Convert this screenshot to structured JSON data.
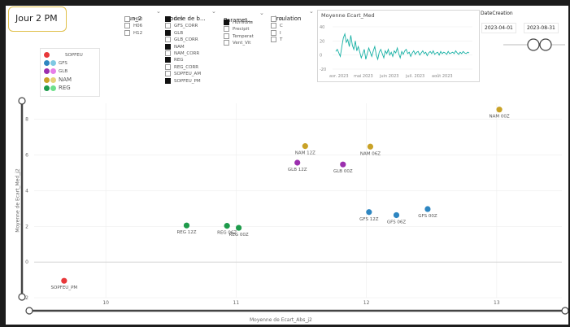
{
  "page_title": "Jour 2 PM",
  "slicers": {
    "run": {
      "title": "Run_2",
      "options": [
        {
          "label": "H00",
          "checked": false
        },
        {
          "label": "H06",
          "checked": false
        },
        {
          "label": "H12",
          "checked": false
        }
      ]
    },
    "modele": {
      "title": "Modele de b...",
      "options": [
        {
          "label": "GFS",
          "checked": true
        },
        {
          "label": "GFS_CORR",
          "checked": false
        },
        {
          "label": "GLB",
          "checked": true
        },
        {
          "label": "GLB_CORR",
          "checked": false
        },
        {
          "label": "NAM",
          "checked": true
        },
        {
          "label": "NAM_CORR",
          "checked": false
        },
        {
          "label": "REG",
          "checked": true
        },
        {
          "label": "REG_CORR",
          "checked": false
        },
        {
          "label": "SOPFEU_AM",
          "checked": false
        },
        {
          "label": "SOPFEU_PM",
          "checked": true
        }
      ]
    },
    "parametre": {
      "title": "Paramet...",
      "options": [
        {
          "label": "Humidite",
          "checked": true
        },
        {
          "label": "Precipit",
          "checked": false
        },
        {
          "label": "Temperat",
          "checked": false
        },
        {
          "label": "Vent_Vit",
          "checked": false
        }
      ]
    },
    "circulation": {
      "title": "Circulation",
      "options": [
        {
          "label": "A",
          "checked": false
        },
        {
          "label": "C",
          "checked": false
        },
        {
          "label": "I",
          "checked": false
        },
        {
          "label": "T",
          "checked": false
        }
      ]
    }
  },
  "legend": {
    "items": [
      {
        "label": "SOPFEU",
        "colors": [
          "#e8383a"
        ]
      },
      {
        "label": "GFS",
        "colors": [
          "#2e86c1",
          "#7ec8e3"
        ]
      },
      {
        "label": "GLB",
        "colors": [
          "#9b2fae",
          "#e77ee8"
        ]
      },
      {
        "label": "NAM",
        "colors": [
          "#c9a227",
          "#e8d27a"
        ]
      },
      {
        "label": "REG",
        "colors": [
          "#1e9b4b",
          "#6ee08a"
        ]
      }
    ]
  },
  "mini_chart": {
    "title": "Moyenne Ecart_Med",
    "y_ticks": [
      "40",
      "20",
      "0",
      "-20"
    ],
    "x_ticks": [
      "avr. 2023",
      "mai 2023",
      "juin 2023",
      "juil. 2023",
      "août 2023"
    ],
    "color": "#16b0a4",
    "values": [
      5,
      8,
      3,
      -2,
      12,
      24,
      30,
      18,
      22,
      12,
      28,
      14,
      8,
      20,
      6,
      12,
      4,
      -4,
      2,
      8,
      -6,
      2,
      10,
      4,
      -2,
      6,
      12,
      0,
      -6,
      4,
      8,
      2,
      -4,
      6,
      2,
      8,
      0,
      4,
      -2,
      6,
      3,
      10,
      2,
      -4,
      5,
      1,
      6,
      8,
      2,
      4,
      -2,
      3,
      6,
      1,
      4,
      5,
      0,
      3,
      6,
      2,
      4,
      -1,
      3,
      5,
      2,
      6,
      1,
      3,
      4,
      0,
      5,
      2,
      4,
      3,
      1,
      5,
      2,
      3,
      4,
      2,
      6,
      3,
      1,
      4,
      2,
      5,
      3,
      2,
      4,
      3
    ]
  },
  "date_filter": {
    "label": "DateCreation",
    "start": "2023-04-01",
    "end": "2023-08-31"
  },
  "chart_data": {
    "type": "scatter",
    "xlabel": "Moyenne de Ecart_Abs_j2",
    "ylabel": "Moyenne de Ecart_Med_j2",
    "xlim": [
      9.45,
      13.5
    ],
    "ylim": [
      -2,
      8.9
    ],
    "x_ticks": [
      10,
      11,
      12,
      13
    ],
    "y_ticks": [
      -2,
      0,
      2,
      4,
      6,
      8
    ],
    "grid": true,
    "points": [
      {
        "label": "SOPFEU_PM",
        "x": 9.68,
        "y": -1.05,
        "color": "#e8383a"
      },
      {
        "label": "REG 12Z",
        "x": 10.62,
        "y": 2.05,
        "color": "#1e9b4b"
      },
      {
        "label": "REG 06Z",
        "x": 10.93,
        "y": 2.03,
        "color": "#1e9b4b"
      },
      {
        "label": "REG 00Z",
        "x": 11.02,
        "y": 1.92,
        "color": "#1e9b4b"
      },
      {
        "label": "NAM 12Z",
        "x": 11.53,
        "y": 6.5,
        "color": "#c9a227"
      },
      {
        "label": "GLB 12Z",
        "x": 11.47,
        "y": 5.57,
        "color": "#9b2fae"
      },
      {
        "label": "GLB 00Z",
        "x": 11.82,
        "y": 5.47,
        "color": "#9b2fae"
      },
      {
        "label": "NAM 06Z",
        "x": 12.03,
        "y": 6.47,
        "color": "#c9a227"
      },
      {
        "label": "GFS 12Z",
        "x": 12.02,
        "y": 2.8,
        "color": "#2e86c1"
      },
      {
        "label": "GFS 06Z",
        "x": 12.23,
        "y": 2.63,
        "color": "#2e86c1"
      },
      {
        "label": "GFS 00Z",
        "x": 12.47,
        "y": 2.97,
        "color": "#2e86c1"
      },
      {
        "label": "NAM 00Z",
        "x": 13.02,
        "y": 8.55,
        "color": "#c9a227"
      }
    ]
  }
}
